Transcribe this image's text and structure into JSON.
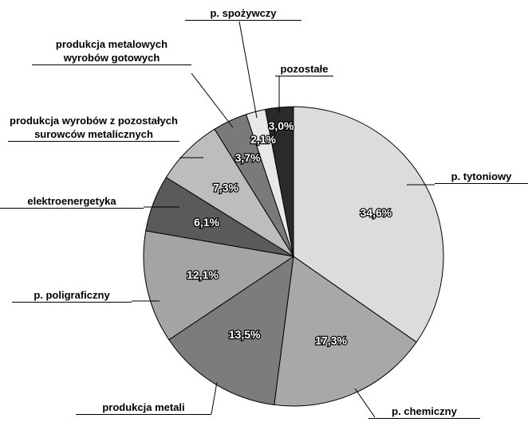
{
  "chart_data": {
    "type": "pie",
    "categories": [
      "p. tytoniowy",
      "p. chemiczny",
      "produkcja metali",
      "p. poligraficzny",
      "elektroenergetyka",
      "produkcja wyrobów z pozostałych surowców metalicznych",
      "produkcja metalowych wyrobów gotowych",
      "p. spożywczy",
      "pozostałe"
    ],
    "values": [
      34.6,
      17.3,
      13.5,
      12.1,
      6.1,
      7.3,
      3.7,
      2.1,
      3.0
    ],
    "value_labels": [
      "34,6%",
      "17,3%",
      "13,5%",
      "12,1%",
      "6,1%",
      "7,3%",
      "3,7%",
      "2,1%",
      "3,0%"
    ],
    "colors": [
      "#dcdcdc",
      "#a8a8a8",
      "#7c7c7c",
      "#a4a4a4",
      "#5a5a5a",
      "#bdbdbd",
      "#7a7a7a",
      "#e8e8e8",
      "#2a2a2a"
    ]
  }
}
